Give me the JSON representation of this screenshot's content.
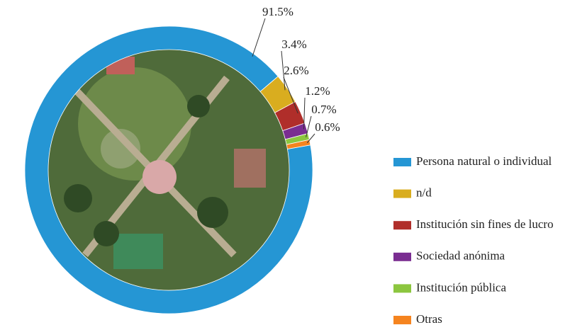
{
  "chart_data": {
    "type": "donut",
    "categories": [
      "Persona natural o individual",
      "n/d",
      "Institución sin fines de lucro",
      "Sociedad anónima",
      "Institución pública",
      "Otras"
    ],
    "values": [
      91.5,
      3.4,
      2.6,
      1.2,
      0.7,
      0.6
    ],
    "value_labels": [
      "91.5%",
      "3.4%",
      "2.6%",
      "1.2%",
      "0.7%",
      "0.6%"
    ],
    "colors": [
      "#2596d4",
      "#d9ad1f",
      "#b02e2a",
      "#7a2d91",
      "#8cc63f",
      "#f5841f"
    ]
  }
}
